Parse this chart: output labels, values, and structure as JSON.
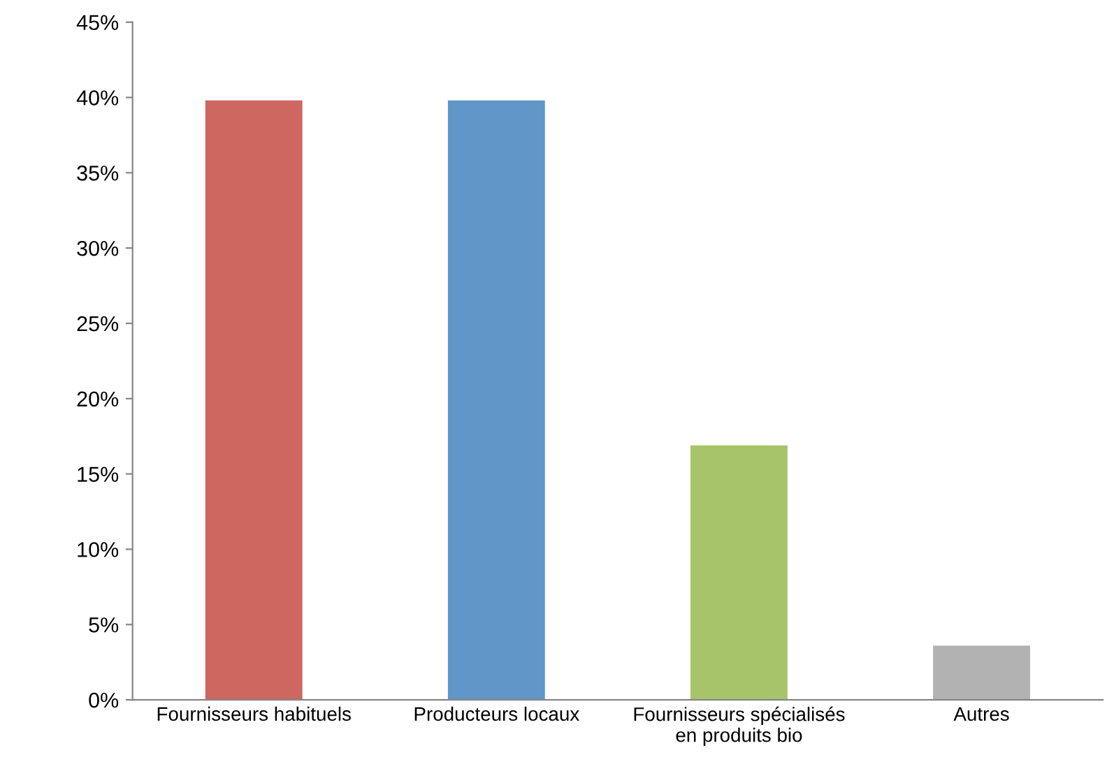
{
  "chart_data": {
    "type": "bar",
    "categories": [
      "Fournisseurs habituels",
      "Producteurs locaux",
      "Fournisseurs spécialisés\nen produits bio",
      "Autres"
    ],
    "values": [
      39.8,
      39.8,
      16.9,
      3.6
    ],
    "colors": [
      "#cd6760",
      "#6096c8",
      "#a8c46a",
      "#b2b2b2"
    ],
    "ylim": [
      0,
      45
    ],
    "yticks": [
      {
        "value": 0,
        "label": "0%"
      },
      {
        "value": 5,
        "label": "5%"
      },
      {
        "value": 10,
        "label": "10%"
      },
      {
        "value": 15,
        "label": "15%"
      },
      {
        "value": 20,
        "label": "20%"
      },
      {
        "value": 25,
        "label": "25%"
      },
      {
        "value": 30,
        "label": "30%"
      },
      {
        "value": 35,
        "label": "35%"
      },
      {
        "value": 40,
        "label": "40%"
      },
      {
        "value": 45,
        "label": "45%"
      }
    ],
    "grid": false
  }
}
